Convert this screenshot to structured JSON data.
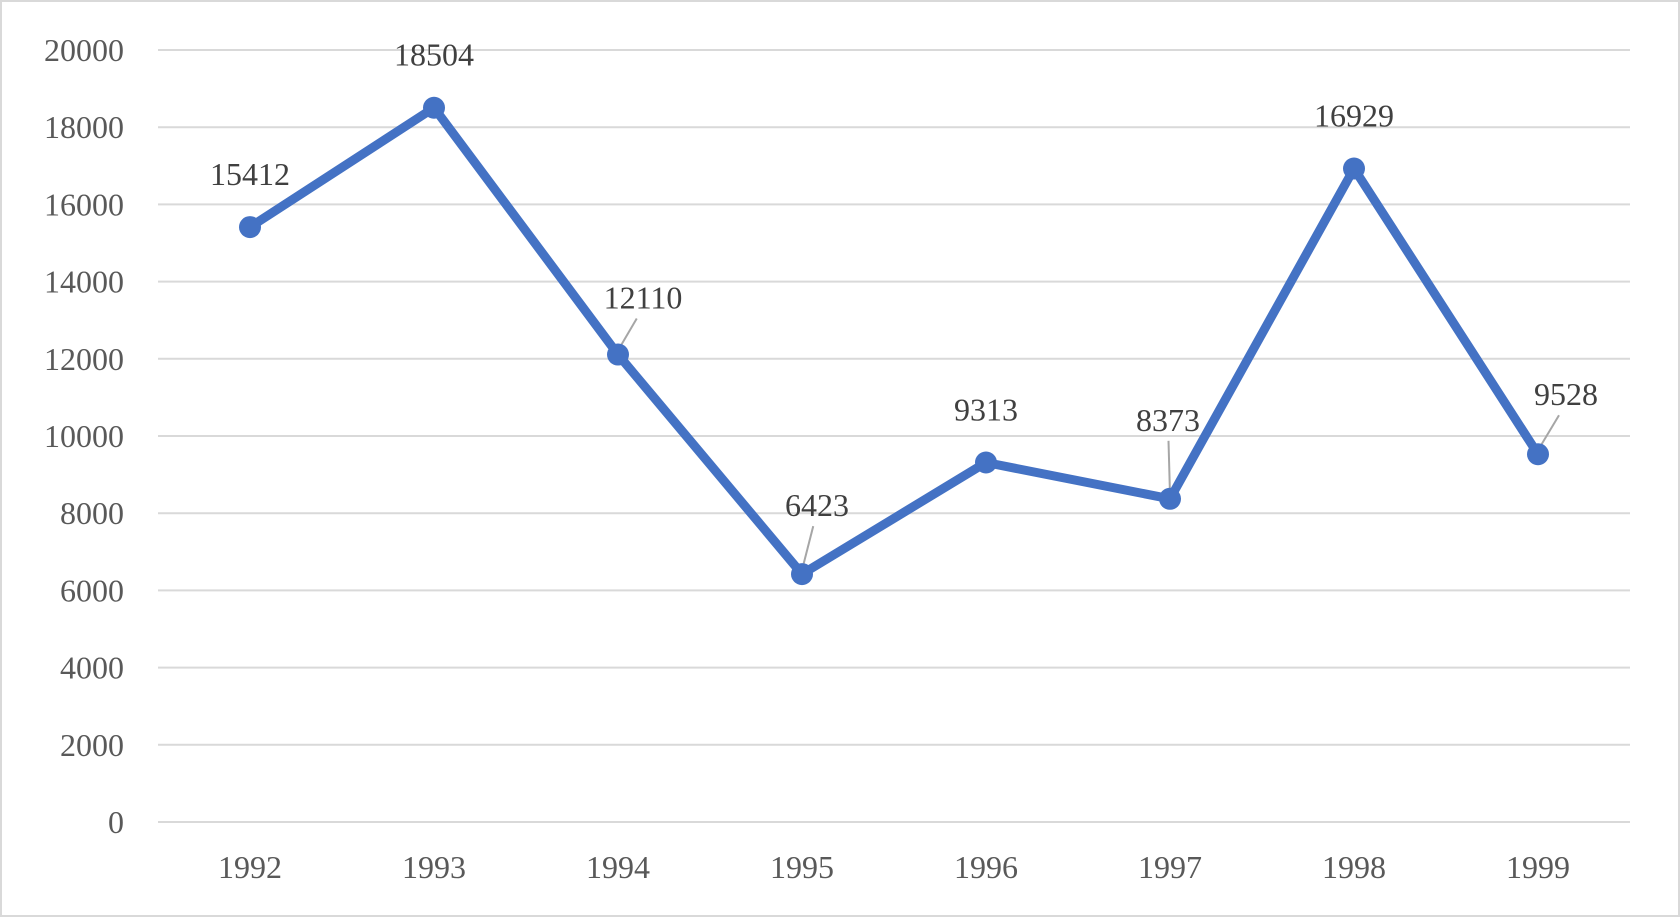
{
  "chart_data": {
    "type": "line",
    "title": "",
    "xlabel": "",
    "ylabel": "",
    "categories": [
      "1992",
      "1993",
      "1994",
      "1995",
      "1996",
      "1997",
      "1998",
      "1999"
    ],
    "series": [
      {
        "values": [
          15412,
          18504,
          12110,
          6423,
          9313,
          8373,
          16929,
          9528
        ],
        "color": "#4472c4"
      }
    ],
    "ylim": [
      0,
      20000
    ],
    "yticks": [
      "0",
      "2000",
      "4000",
      "6000",
      "8000",
      "10000",
      "12000",
      "14000",
      "16000",
      "18000",
      "20000"
    ],
    "data_labels": [
      "15412",
      "18504",
      "12110",
      "6423",
      "9313",
      "8373",
      "16929",
      "9528"
    ],
    "grid": true,
    "legend": "none"
  }
}
